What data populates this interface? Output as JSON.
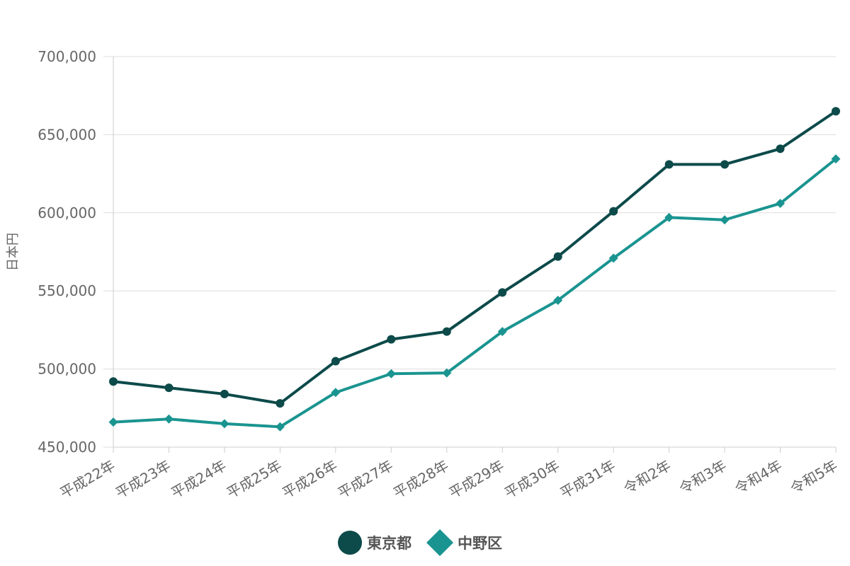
{
  "chart_data": {
    "type": "line",
    "title": "",
    "xlabel": "",
    "ylabel": "日本円",
    "ylim": [
      450000,
      700000
    ],
    "yticks": [
      450000,
      500000,
      550000,
      600000,
      650000,
      700000
    ],
    "ytick_labels": [
      "450,000",
      "500,000",
      "550,000",
      "600,000",
      "650,000",
      "700,000"
    ],
    "grid": true,
    "legend_position": "bottom",
    "categories": [
      "平成22年",
      "平成23年",
      "平成24年",
      "平成25年",
      "平成26年",
      "平成27年",
      "平成28年",
      "平成29年",
      "平成30年",
      "平成31年",
      "令和2年",
      "令和3年",
      "令和4年",
      "令和5年"
    ],
    "series": [
      {
        "name": "東京都",
        "marker": "circle",
        "color": "#0d4a4a",
        "values": [
          492000,
          488000,
          484000,
          478000,
          505000,
          519000,
          524000,
          549000,
          572000,
          601000,
          631000,
          631000,
          641000,
          665000
        ]
      },
      {
        "name": "中野区",
        "marker": "diamond",
        "color": "#1a9490",
        "values": [
          466000,
          468000,
          465000,
          463000,
          485000,
          497000,
          497500,
          524000,
          544000,
          571000,
          597000,
          595500,
          606000,
          634500
        ]
      }
    ]
  }
}
